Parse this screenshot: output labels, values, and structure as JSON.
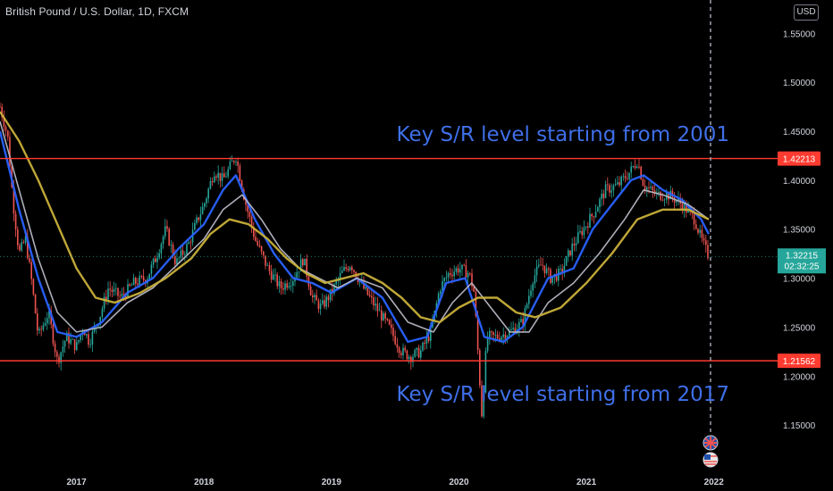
{
  "header": {
    "title": "British Pound / U.S. Dollar, 1D, FXCM",
    "currency_button": "USD"
  },
  "colors": {
    "background": "#000000",
    "sr_line": "#ff3b30",
    "candle_up": "#26a69a",
    "candle_down": "#ef5350",
    "ma_fast": "#2962ff",
    "ma_mid": "#b7b7c4",
    "ma_slow": "#c9b03a",
    "label_blue": "#3f6fe8",
    "price_badge": "#2a2e39",
    "axis_text": "#d1d4dc"
  },
  "icons": [
    "uk-flag-icon",
    "us-flag-icon"
  ],
  "chart_data": {
    "type": "line",
    "title": "British Pound / U.S. Dollar, 1D, FXCM",
    "xlabel": "",
    "ylabel": "",
    "x_ticks": [
      "2017",
      "2018",
      "2019",
      "2020",
      "2021",
      "2022"
    ],
    "y_ticks": [
      "1.55000",
      "1.50000",
      "1.45000",
      "1.40000",
      "1.35000",
      "1.30000",
      "1.25000",
      "1.20000",
      "1.15000"
    ],
    "ylim": [
      1.11,
      1.584
    ],
    "xlim": [
      2016.4,
      2022.5
    ],
    "last_price": {
      "value": 1.32215,
      "label": "1.32215",
      "countdown": "02:32:25"
    },
    "horizontal_levels": [
      {
        "value": 1.42213,
        "label": "1.42213",
        "annotation": "Key S/R level starting from 2001"
      },
      {
        "value": 1.21562,
        "label": "1.21562",
        "annotation": "Key S/R level starting from 2017"
      }
    ],
    "series": [
      {
        "type": "price",
        "x": [
          2016.4,
          2016.46,
          2016.5,
          2016.55,
          2016.6,
          2016.65,
          2016.7,
          2016.78,
          2016.85,
          2016.92,
          2017.0,
          2017.05,
          2017.1,
          2017.18,
          2017.25,
          2017.35,
          2017.45,
          2017.55,
          2017.62,
          2017.7,
          2017.78,
          2017.88,
          2017.95,
          2018.0,
          2018.08,
          2018.15,
          2018.25,
          2018.32,
          2018.4,
          2018.5,
          2018.6,
          2018.7,
          2018.78,
          2018.85,
          2018.92,
          2019.0,
          2019.08,
          2019.15,
          2019.25,
          2019.35,
          2019.45,
          2019.55,
          2019.62,
          2019.7,
          2019.78,
          2019.85,
          2019.92,
          2020.0,
          2020.08,
          2020.12,
          2020.18,
          2020.22,
          2020.3,
          2020.4,
          2020.5,
          2020.58,
          2020.65,
          2020.72,
          2020.8,
          2020.88,
          2020.95,
          2021.05,
          2021.15,
          2021.25,
          2021.35,
          2021.4,
          2021.45,
          2021.55,
          2021.65,
          2021.75,
          2021.85,
          2021.9,
          2021.96
        ],
        "values": [
          1.475,
          1.445,
          1.38,
          1.325,
          1.34,
          1.295,
          1.24,
          1.265,
          1.215,
          1.24,
          1.23,
          1.25,
          1.235,
          1.26,
          1.29,
          1.28,
          1.295,
          1.3,
          1.32,
          1.35,
          1.315,
          1.335,
          1.36,
          1.375,
          1.41,
          1.4,
          1.425,
          1.38,
          1.34,
          1.31,
          1.29,
          1.3,
          1.32,
          1.28,
          1.27,
          1.285,
          1.305,
          1.315,
          1.29,
          1.27,
          1.25,
          1.225,
          1.22,
          1.225,
          1.245,
          1.29,
          1.305,
          1.31,
          1.305,
          1.285,
          1.16,
          1.24,
          1.24,
          1.245,
          1.255,
          1.3,
          1.315,
          1.3,
          1.305,
          1.33,
          1.345,
          1.365,
          1.39,
          1.395,
          1.41,
          1.42,
          1.395,
          1.385,
          1.385,
          1.375,
          1.36,
          1.34,
          1.322
        ]
      },
      {
        "type": "moving_average_fast",
        "x": [
          2016.4,
          2016.55,
          2016.7,
          2016.85,
          2017.0,
          2017.2,
          2017.4,
          2017.6,
          2017.8,
          2018.0,
          2018.15,
          2018.25,
          2018.4,
          2018.55,
          2018.7,
          2018.85,
          2019.0,
          2019.2,
          2019.4,
          2019.6,
          2019.75,
          2019.9,
          2020.05,
          2020.2,
          2020.35,
          2020.5,
          2020.7,
          2020.9,
          2021.05,
          2021.2,
          2021.35,
          2021.45,
          2021.6,
          2021.75,
          2021.9,
          2021.96
        ],
        "values": [
          1.45,
          1.37,
          1.3,
          1.245,
          1.24,
          1.255,
          1.285,
          1.3,
          1.33,
          1.355,
          1.39,
          1.405,
          1.36,
          1.325,
          1.3,
          1.295,
          1.285,
          1.3,
          1.28,
          1.235,
          1.24,
          1.295,
          1.3,
          1.24,
          1.235,
          1.25,
          1.3,
          1.31,
          1.35,
          1.375,
          1.4,
          1.405,
          1.39,
          1.38,
          1.36,
          1.345
        ]
      },
      {
        "type": "moving_average_mid",
        "x": [
          2016.4,
          2016.55,
          2016.7,
          2016.85,
          2017.0,
          2017.2,
          2017.4,
          2017.6,
          2017.8,
          2018.0,
          2018.15,
          2018.3,
          2018.45,
          2018.6,
          2018.75,
          2018.9,
          2019.05,
          2019.2,
          2019.4,
          2019.6,
          2019.8,
          2019.95,
          2020.1,
          2020.25,
          2020.4,
          2020.55,
          2020.7,
          2020.9,
          2021.1,
          2021.3,
          2021.45,
          2021.6,
          2021.8,
          2021.96
        ],
        "values": [
          1.46,
          1.39,
          1.32,
          1.265,
          1.245,
          1.25,
          1.275,
          1.29,
          1.315,
          1.34,
          1.37,
          1.385,
          1.36,
          1.33,
          1.31,
          1.3,
          1.29,
          1.3,
          1.29,
          1.255,
          1.245,
          1.275,
          1.295,
          1.27,
          1.245,
          1.245,
          1.275,
          1.295,
          1.325,
          1.36,
          1.39,
          1.385,
          1.375,
          1.36
        ]
      },
      {
        "type": "moving_average_slow",
        "x": [
          2016.4,
          2016.55,
          2016.7,
          2016.85,
          2017.0,
          2017.15,
          2017.3,
          2017.5,
          2017.7,
          2017.9,
          2018.05,
          2018.2,
          2018.35,
          2018.5,
          2018.65,
          2018.8,
          2018.95,
          2019.1,
          2019.25,
          2019.4,
          2019.55,
          2019.7,
          2019.85,
          2020.0,
          2020.15,
          2020.3,
          2020.45,
          2020.6,
          2020.8,
          2021.0,
          2021.2,
          2021.4,
          2021.6,
          2021.8,
          2021.96
        ],
        "values": [
          1.47,
          1.44,
          1.4,
          1.355,
          1.31,
          1.28,
          1.275,
          1.285,
          1.3,
          1.32,
          1.345,
          1.36,
          1.355,
          1.34,
          1.32,
          1.305,
          1.295,
          1.3,
          1.305,
          1.295,
          1.28,
          1.26,
          1.255,
          1.27,
          1.28,
          1.28,
          1.265,
          1.26,
          1.27,
          1.295,
          1.325,
          1.36,
          1.37,
          1.37,
          1.36
        ]
      }
    ]
  }
}
